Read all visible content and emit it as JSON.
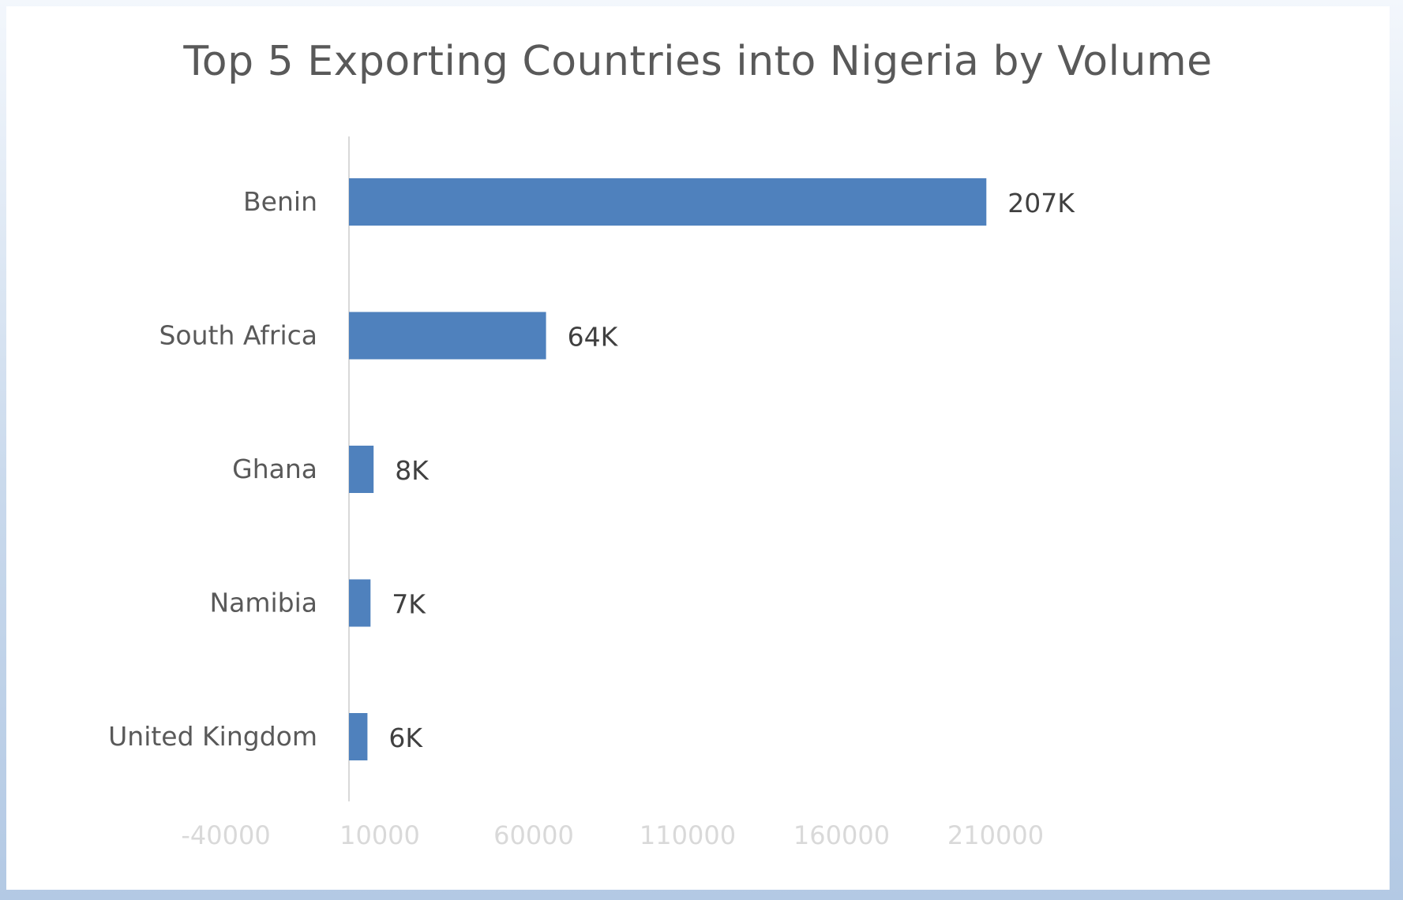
{
  "chart_data": {
    "type": "bar",
    "orientation": "horizontal",
    "title": "Top 5 Exporting Countries into Nigeria by Volume",
    "categories": [
      "Benin",
      "South Africa",
      "Ghana",
      "Namibia",
      "United Kingdom"
    ],
    "values": [
      207000,
      64000,
      8000,
      7000,
      6000
    ],
    "data_labels": [
      "207K",
      "64K",
      "8K",
      "7K",
      "6K"
    ],
    "x_ticks": [
      -40000,
      10000,
      60000,
      110000,
      160000,
      210000
    ],
    "xlim": [
      -40000,
      250000
    ],
    "xlabel": "",
    "ylabel": "",
    "grid": false,
    "legend": "none",
    "colors": {
      "bar": "#4f81bd",
      "axis_line": "#d9d9d9",
      "title": "#595959",
      "tick_label": "#d9d9d9",
      "category_label": "#595959",
      "data_label": "#404040"
    }
  }
}
